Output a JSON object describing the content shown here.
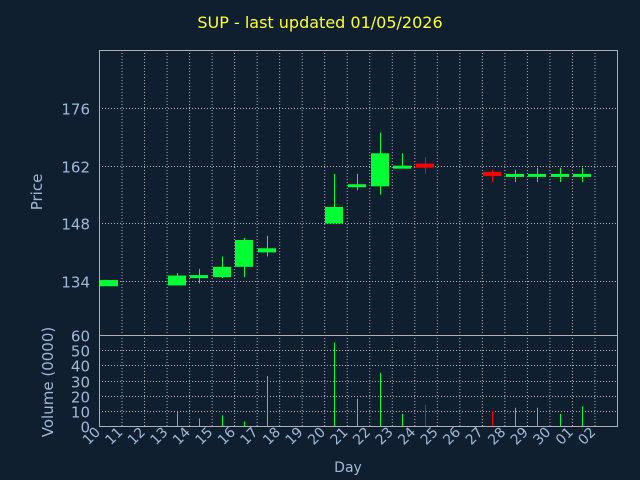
{
  "chart_data": {
    "type": "candlestick",
    "title": "SUP - last updated 01/05/2026",
    "price_panel": {
      "ylabel": "Price",
      "yticks": [
        134,
        148,
        162,
        176
      ],
      "ylim": [
        121,
        190
      ]
    },
    "volume_panel": {
      "ylabel": "Volume (0000)",
      "yticks": [
        0,
        10,
        20,
        30,
        40,
        50,
        60
      ],
      "ylim": [
        0,
        60
      ]
    },
    "xlabel": "Day",
    "days": [
      "10",
      "11",
      "12",
      "13",
      "14",
      "15",
      "16",
      "17",
      "18",
      "19",
      "20",
      "21",
      "22",
      "23",
      "24",
      "25",
      "26",
      "27",
      "28",
      "29",
      "30",
      "01",
      "02"
    ],
    "candles": [
      {
        "day": "10",
        "open": 132.8,
        "high": 134.3,
        "low": 132.8,
        "close": 134.3,
        "volume": 0
      },
      {
        "day": "13",
        "open": 133,
        "high": 136,
        "low": 133,
        "close": 135.4,
        "volume": 10
      },
      {
        "day": "14",
        "open": 135,
        "high": 137,
        "low": 133.5,
        "close": 135.5,
        "volume": 5
      },
      {
        "day": "15",
        "open": 135,
        "high": 140,
        "low": 134.8,
        "close": 137.5,
        "volume": 7
      },
      {
        "day": "16",
        "open": 137.5,
        "high": 144.5,
        "low": 135,
        "close": 144,
        "volume": 3
      },
      {
        "day": "17",
        "open": 141,
        "high": 145,
        "low": 140,
        "close": 142,
        "volume": 33
      },
      {
        "day": "20",
        "open": 148,
        "high": 160,
        "low": 148,
        "close": 152,
        "volume": 55
      },
      {
        "day": "21",
        "open": 157,
        "high": 160,
        "low": 156,
        "close": 157.5,
        "volume": 18
      },
      {
        "day": "22",
        "open": 157,
        "high": 170,
        "low": 155,
        "close": 165,
        "volume": 35
      },
      {
        "day": "23",
        "open": 161.5,
        "high": 165,
        "low": 161.5,
        "close": 162,
        "volume": 8
      },
      {
        "day": "24",
        "open": 162.5,
        "high": 164,
        "low": 160,
        "close": 161.5,
        "volume": 14
      },
      {
        "day": "27",
        "open": 160.5,
        "high": 161,
        "low": 158,
        "close": 159.5,
        "volume": 10
      },
      {
        "day": "28",
        "open": 159.8,
        "high": 161,
        "low": 158,
        "close": 160,
        "volume": 12
      },
      {
        "day": "29",
        "open": 159.8,
        "high": 161.5,
        "low": 158,
        "close": 160,
        "volume": 12
      },
      {
        "day": "30",
        "open": 160,
        "high": 161.5,
        "low": 158,
        "close": 160,
        "volume": 8
      },
      {
        "day": "01",
        "open": 160,
        "high": 161.5,
        "low": 158,
        "close": 160,
        "volume": 13
      }
    ],
    "colors": {
      "background": "#0f1f30",
      "up": "#00ff33",
      "down": "#ff0000",
      "grid": "#b0b0b0",
      "text": "#9fb8d8",
      "title": "#ffff33"
    },
    "grid": true
  }
}
